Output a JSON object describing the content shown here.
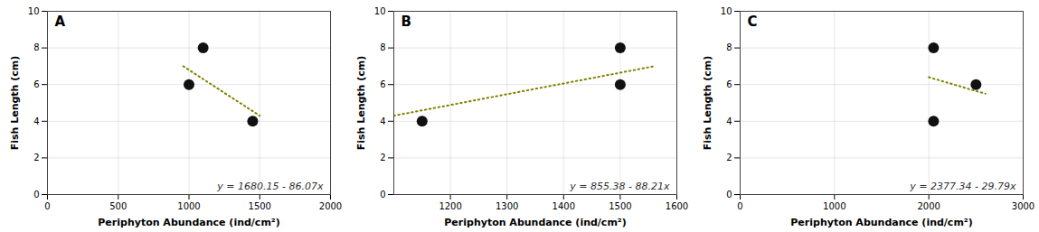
{
  "chart_data": [
    {
      "type": "scatter",
      "title": "A",
      "xlabel": "Periphyton Abundance (ind/cm²)",
      "ylabel": "Fish Length (cm)",
      "annotations": [
        "y = 1680.15 - 86.07x"
      ],
      "series": [
        {
          "type": "scatter",
          "color": "#111111",
          "x": [
            1000,
            1100,
            1450
          ],
          "values": [
            6,
            8,
            4
          ]
        },
        {
          "type": "line",
          "color": "#808000",
          "line_style": "dotted",
          "x": [
            960,
            1500
          ],
          "values": [
            7.0,
            4.3
          ]
        }
      ],
      "xlim": [
        0,
        2000
      ],
      "xticks": [
        0,
        500,
        1000,
        1500,
        2000
      ],
      "ylim": [
        0,
        10
      ],
      "yticks": [
        0,
        2,
        4,
        6,
        8,
        10
      ],
      "grid": true
    },
    {
      "type": "scatter",
      "title": "B",
      "xlabel": "Periphyton Abundance (ind/cm²)",
      "ylabel": "Fish Length (cm)",
      "annotations": [
        "y = 855.38 - 88.21x"
      ],
      "series": [
        {
          "type": "scatter",
          "color": "#111111",
          "x": [
            1150,
            1500,
            1500
          ],
          "values": [
            4,
            8,
            6
          ]
        },
        {
          "type": "line",
          "color": "#808000",
          "line_style": "dotted",
          "x": [
            1100,
            1560
          ],
          "values": [
            4.3,
            7.0
          ]
        }
      ],
      "xlim": [
        1100,
        1600
      ],
      "xticks": [
        1200,
        1300,
        1400,
        1500,
        1600
      ],
      "ylim": [
        0,
        10
      ],
      "yticks": [
        0,
        2,
        4,
        6,
        8,
        10
      ],
      "grid": true
    },
    {
      "type": "scatter",
      "title": "C",
      "xlabel": "Periphyton Abundance (ind/cm²)",
      "ylabel": "Fish Length (cm)",
      "annotations": [
        "y = 2377.34 - 29.79x"
      ],
      "series": [
        {
          "type": "scatter",
          "color": "#111111",
          "x": [
            2050,
            2050,
            2500
          ],
          "values": [
            8,
            4,
            6
          ]
        },
        {
          "type": "line",
          "color": "#808000",
          "line_style": "dotted",
          "x": [
            2000,
            2600
          ],
          "values": [
            6.4,
            5.5
          ]
        }
      ],
      "xlim": [
        0,
        3000
      ],
      "xticks": [
        0,
        1000,
        2000,
        3000
      ],
      "ylim": [
        0,
        10
      ],
      "yticks": [
        0,
        2,
        4,
        6,
        8,
        10
      ],
      "grid": true
    }
  ]
}
